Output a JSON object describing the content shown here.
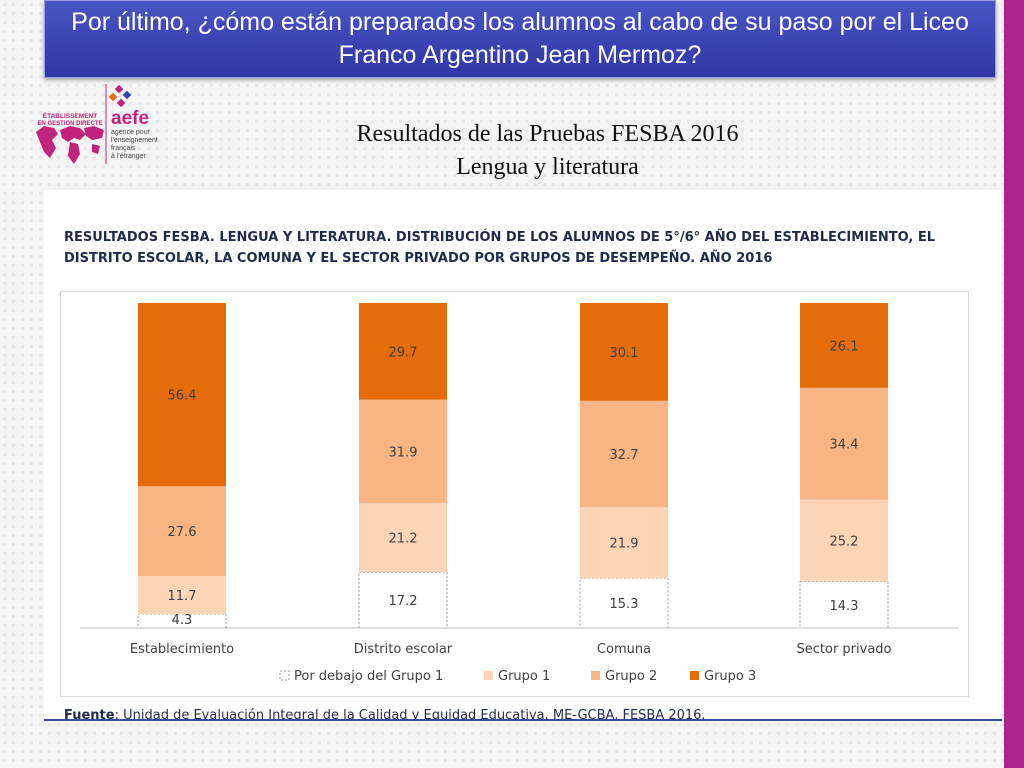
{
  "slide": {
    "banner_title": "Por último, ¿cómo están preparados los alumnos al cabo de su paso por el Liceo Franco Argentino Jean Mermoz?",
    "title_line1": "Resultados de las Pruebas FESBA 2016",
    "title_line2": "Lengua y literatura",
    "source_label": "Fuente",
    "source_text": ": Unidad de Evaluación Integral de la Calidad y Equidad Educativa. ME-GCBA. FESBA 2016."
  },
  "logo": {
    "tag_line1": "ÉTABLISSEMENT",
    "tag_line2": "EN GESTION DIRECTE",
    "brand": "aefe",
    "desc_line1": "agence pour",
    "desc_line2": "l'enseignement",
    "desc_line3": "français",
    "desc_line4": "à l'étranger",
    "color": "#c2237d"
  },
  "colors": {
    "banner": "#3a42b0",
    "accent_bar": "#b0238f",
    "grupo3": "#e46c0a",
    "grupo2": "#f7b583",
    "grupo1": "#fbd5b5",
    "below": "#ffffff"
  },
  "chart_data": {
    "type": "bar",
    "stacked": true,
    "title_line1": "RESULTADOS FESBA. LENGUA Y LITERATURA. DISTRIBUCIÓN DE LOS ALUMNOS DE 5°/6° AÑO DEL ESTABLECIMIENTO, EL",
    "title_line2": "DISTRITO ESCOLAR, LA COMUNA Y EL SECTOR PRIVADO POR GRUPOS DE DESEMPEÑO. AÑO 2016",
    "categories": [
      "Establecimiento",
      "Distrito escolar",
      "Comuna",
      "Sector privado"
    ],
    "series": [
      {
        "name": "Por debajo del Grupo 1",
        "color": "#ffffff",
        "values": [
          4.3,
          17.2,
          15.3,
          14.3
        ]
      },
      {
        "name": "Grupo 1",
        "color": "#fbd5b5",
        "values": [
          11.7,
          21.2,
          21.9,
          25.2
        ]
      },
      {
        "name": "Grupo 2",
        "color": "#f7b583",
        "values": [
          27.6,
          31.9,
          32.7,
          34.4
        ]
      },
      {
        "name": "Grupo 3",
        "color": "#e46c0a",
        "values": [
          56.4,
          29.7,
          30.1,
          26.1
        ]
      }
    ],
    "ylim": [
      0,
      100
    ],
    "legend": "bottom",
    "grid": false
  }
}
